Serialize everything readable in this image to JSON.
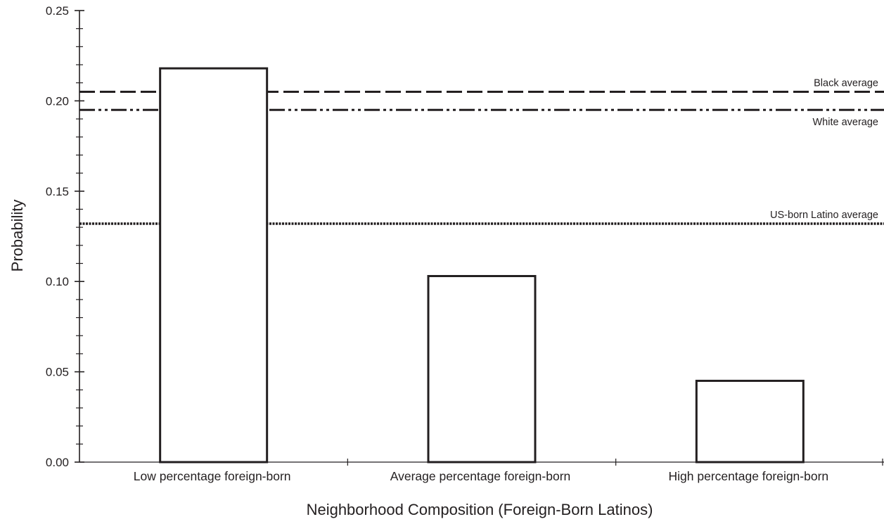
{
  "chart_data": {
    "type": "bar",
    "title": "",
    "xlabel": "Neighborhood Composition (Foreign-Born Latinos)",
    "ylabel": "Probability",
    "ylim": [
      0,
      0.25
    ],
    "yticks": [
      {
        "value": 0.0,
        "label": "0.00"
      },
      {
        "value": 0.05,
        "label": "0.05"
      },
      {
        "value": 0.1,
        "label": "0.10"
      },
      {
        "value": 0.15,
        "label": "0.15"
      },
      {
        "value": 0.2,
        "label": "0.20"
      },
      {
        "value": 0.25,
        "label": "0.25"
      }
    ],
    "categories": [
      "Low percentage foreign-born",
      "Average percentage foreign-born",
      "High percentage foreign-born"
    ],
    "values": [
      0.218,
      0.103,
      0.045
    ],
    "reference_lines": [
      {
        "label": "Black average",
        "value": 0.205,
        "style": "dashed"
      },
      {
        "label": "White average",
        "value": 0.195,
        "style": "dash-dot-dot"
      },
      {
        "label": "US-born Latino average",
        "value": 0.132,
        "style": "dotted"
      }
    ],
    "grid": false,
    "legend": "none",
    "colors": {
      "ink": "#231f20",
      "bar_fill": "#ffffff"
    }
  }
}
